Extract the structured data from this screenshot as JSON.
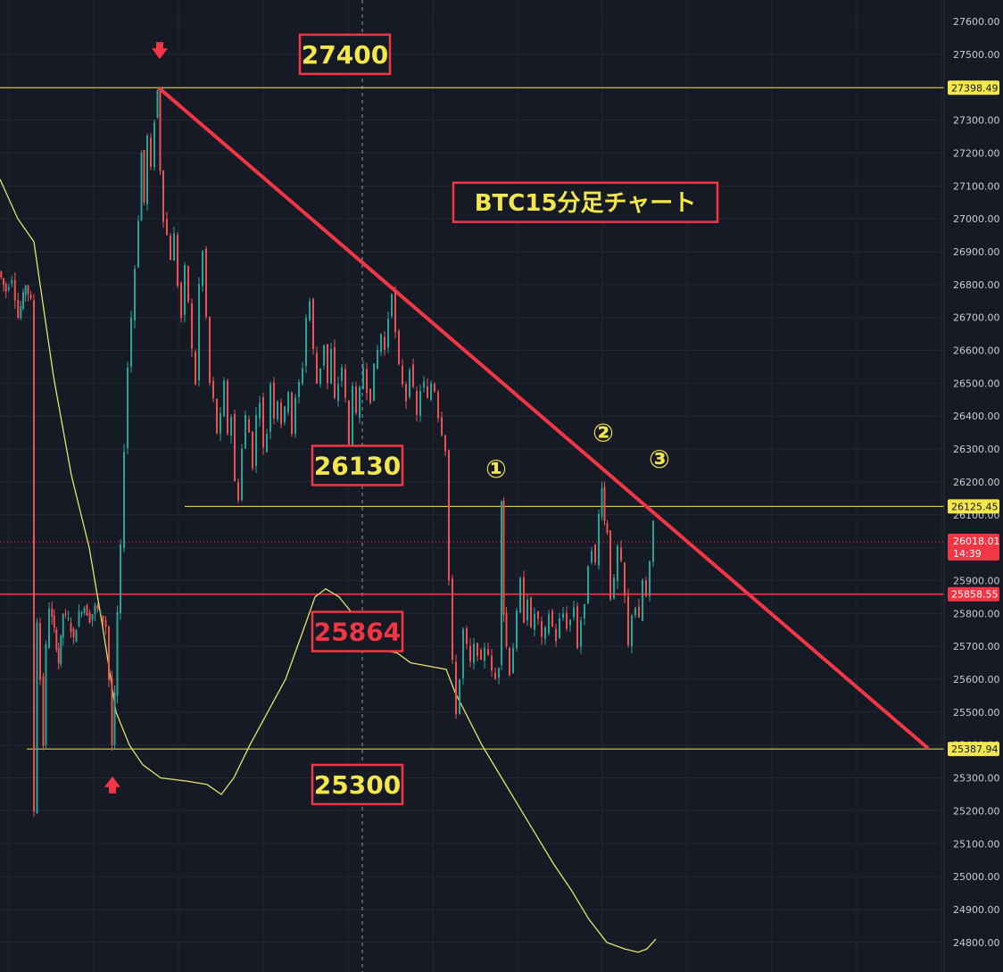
{
  "chart_data": {
    "type": "candlestick",
    "title": "BTC15分足チャート",
    "ylim": [
      24750,
      27700
    ],
    "y_ticks": [
      24800,
      24900,
      25000,
      25100,
      25200,
      25300,
      25400,
      25500,
      25600,
      25700,
      25800,
      25900,
      26000,
      26100,
      26200,
      26300,
      26400,
      26500,
      26600,
      26700,
      26800,
      26900,
      27000,
      27100,
      27200,
      27300,
      27400,
      27500,
      27600
    ],
    "grid": true,
    "colors": {
      "background": "#161a25",
      "up": "#26a69a",
      "down": "#ef5350",
      "accent_red": "#f23645",
      "accent_yellow": "#f3e74a",
      "ma": "#e3e36a"
    },
    "price_path": [
      [
        0,
        26840
      ],
      [
        8,
        26780
      ],
      [
        15,
        26820
      ],
      [
        22,
        26700
      ],
      [
        30,
        26800
      ],
      [
        36,
        26750
      ],
      [
        40,
        25200
      ],
      [
        43,
        25780
      ],
      [
        47,
        25600
      ],
      [
        50,
        25400
      ],
      [
        53,
        25700
      ],
      [
        57,
        25820
      ],
      [
        62,
        25750
      ],
      [
        67,
        25650
      ],
      [
        72,
        25800
      ],
      [
        78,
        25780
      ],
      [
        84,
        25720
      ],
      [
        90,
        25800
      ],
      [
        96,
        25820
      ],
      [
        102,
        25780
      ],
      [
        108,
        25820
      ],
      [
        114,
        25800
      ],
      [
        120,
        25760
      ],
      [
        124,
        25600
      ],
      [
        127,
        25400
      ],
      [
        130,
        25550
      ],
      [
        133,
        25800
      ],
      [
        137,
        26000
      ],
      [
        141,
        26300
      ],
      [
        145,
        26550
      ],
      [
        149,
        26700
      ],
      [
        153,
        26850
      ],
      [
        157,
        27000
      ],
      [
        160,
        27200
      ],
      [
        163,
        27050
      ],
      [
        167,
        27250
      ],
      [
        171,
        27150
      ],
      [
        175,
        27300
      ],
      [
        178,
        27390
      ],
      [
        181,
        27150
      ],
      [
        185,
        27000
      ],
      [
        189,
        26950
      ],
      [
        193,
        26880
      ],
      [
        197,
        26950
      ],
      [
        201,
        26800
      ],
      [
        205,
        26700
      ],
      [
        209,
        26850
      ],
      [
        213,
        26750
      ],
      [
        217,
        26600
      ],
      [
        221,
        26500
      ],
      [
        225,
        26800
      ],
      [
        229,
        26900
      ],
      [
        233,
        26700
      ],
      [
        237,
        26500
      ],
      [
        241,
        26450
      ],
      [
        245,
        26350
      ],
      [
        249,
        26400
      ],
      [
        253,
        26500
      ],
      [
        257,
        26350
      ],
      [
        261,
        26400
      ],
      [
        265,
        26200
      ],
      [
        269,
        26150
      ],
      [
        273,
        26300
      ],
      [
        277,
        26400
      ],
      [
        281,
        26350
      ],
      [
        285,
        26250
      ],
      [
        289,
        26400
      ],
      [
        293,
        26450
      ],
      [
        297,
        26300
      ],
      [
        301,
        26350
      ],
      [
        305,
        26500
      ],
      [
        309,
        26400
      ],
      [
        313,
        26450
      ],
      [
        317,
        26380
      ],
      [
        321,
        26420
      ],
      [
        325,
        26480
      ],
      [
        329,
        26350
      ],
      [
        333,
        26450
      ],
      [
        337,
        26500
      ],
      [
        341,
        26550
      ],
      [
        345,
        26700
      ],
      [
        349,
        26750
      ],
      [
        353,
        26600
      ],
      [
        357,
        26500
      ],
      [
        361,
        26550
      ],
      [
        365,
        26620
      ],
      [
        369,
        26500
      ],
      [
        373,
        26600
      ],
      [
        377,
        26450
      ],
      [
        381,
        26500
      ],
      [
        385,
        26550
      ],
      [
        389,
        26450
      ],
      [
        393,
        26300
      ],
      [
        397,
        26500
      ],
      [
        401,
        26400
      ],
      [
        405,
        26480
      ],
      [
        409,
        26550
      ],
      [
        413,
        26480
      ],
      [
        417,
        26450
      ],
      [
        421,
        26550
      ],
      [
        425,
        26600
      ],
      [
        429,
        26650
      ],
      [
        433,
        26600
      ],
      [
        437,
        26700
      ],
      [
        441,
        26780
      ],
      [
        445,
        26650
      ],
      [
        449,
        26550
      ],
      [
        453,
        26500
      ],
      [
        457,
        26450
      ],
      [
        461,
        26550
      ],
      [
        465,
        26480
      ],
      [
        469,
        26400
      ],
      [
        473,
        26480
      ],
      [
        477,
        26500
      ],
      [
        481,
        26450
      ],
      [
        485,
        26500
      ],
      [
        489,
        26480
      ],
      [
        493,
        26400
      ],
      [
        497,
        26350
      ],
      [
        501,
        26300
      ],
      [
        505,
        25900
      ],
      [
        509,
        25650
      ],
      [
        513,
        25500
      ],
      [
        517,
        25600
      ],
      [
        521,
        25750
      ],
      [
        525,
        25700
      ],
      [
        529,
        25650
      ],
      [
        533,
        25700
      ],
      [
        537,
        25680
      ],
      [
        541,
        25650
      ],
      [
        545,
        25700
      ],
      [
        549,
        25680
      ],
      [
        553,
        25620
      ],
      [
        557,
        25600
      ],
      [
        561,
        25640
      ],
      [
        563,
        26150
      ],
      [
        566,
        25800
      ],
      [
        569,
        25700
      ],
      [
        573,
        25620
      ],
      [
        577,
        25700
      ],
      [
        581,
        25800
      ],
      [
        585,
        25900
      ],
      [
        589,
        25780
      ],
      [
        593,
        25850
      ],
      [
        597,
        25750
      ],
      [
        601,
        25800
      ],
      [
        605,
        25780
      ],
      [
        609,
        25720
      ],
      [
        613,
        25750
      ],
      [
        617,
        25800
      ],
      [
        621,
        25760
      ],
      [
        625,
        25720
      ],
      [
        629,
        25780
      ],
      [
        633,
        25800
      ],
      [
        637,
        25760
      ],
      [
        641,
        25780
      ],
      [
        645,
        25820
      ],
      [
        649,
        25700
      ],
      [
        653,
        25780
      ],
      [
        657,
        25820
      ],
      [
        661,
        25950
      ],
      [
        665,
        26000
      ],
      [
        669,
        25950
      ],
      [
        673,
        26100
      ],
      [
        676,
        26190
      ],
      [
        679,
        26080
      ],
      [
        682,
        26050
      ],
      [
        686,
        25850
      ],
      [
        690,
        25900
      ],
      [
        694,
        26000
      ],
      [
        698,
        25950
      ],
      [
        702,
        25850
      ],
      [
        706,
        25700
      ],
      [
        710,
        25800
      ],
      [
        714,
        25820
      ],
      [
        718,
        25780
      ],
      [
        722,
        25900
      ],
      [
        726,
        25850
      ],
      [
        730,
        25950
      ],
      [
        734,
        26080
      ]
    ],
    "ma_path": [
      [
        0,
        27120
      ],
      [
        20,
        27000
      ],
      [
        38,
        26930
      ],
      [
        60,
        26520
      ],
      [
        80,
        26220
      ],
      [
        100,
        26000
      ],
      [
        115,
        25760
      ],
      [
        130,
        25500
      ],
      [
        145,
        25400
      ],
      [
        160,
        25340
      ],
      [
        180,
        25300
      ],
      [
        210,
        25290
      ],
      [
        232,
        25280
      ],
      [
        248,
        25250
      ],
      [
        262,
        25300
      ],
      [
        280,
        25400
      ],
      [
        300,
        25500
      ],
      [
        320,
        25600
      ],
      [
        340,
        25750
      ],
      [
        353,
        25850
      ],
      [
        365,
        25875
      ],
      [
        380,
        25850
      ],
      [
        395,
        25800
      ],
      [
        410,
        25720
      ],
      [
        425,
        25690
      ],
      [
        445,
        25680
      ],
      [
        460,
        25650
      ],
      [
        480,
        25640
      ],
      [
        500,
        25630
      ],
      [
        510,
        25560
      ],
      [
        525,
        25480
      ],
      [
        540,
        25400
      ],
      [
        560,
        25310
      ],
      [
        580,
        25220
      ],
      [
        600,
        25130
      ],
      [
        620,
        25040
      ],
      [
        640,
        24960
      ],
      [
        660,
        24870
      ],
      [
        680,
        24800
      ],
      [
        700,
        24780
      ],
      [
        715,
        24770
      ],
      [
        725,
        24780
      ],
      [
        735,
        24810
      ]
    ],
    "annotations": {
      "trendline": {
        "start": {
          "x": 178,
          "price": 27398
        },
        "end": {
          "x": 1040,
          "price": 25390
        }
      },
      "levels": [
        {
          "price": 27398.49,
          "label": "27398.49",
          "color": "#f3e74a",
          "x_start": 0
        },
        {
          "price": 26125.45,
          "label": "26125.45",
          "color": "#f3e74a",
          "x_start": 207
        },
        {
          "price": 25858.55,
          "label": "25858.55",
          "color": "#f23645",
          "x_start": 0
        },
        {
          "price": 25387.94,
          "label": "25387.94",
          "color": "#f3e74a",
          "x_start": 30
        }
      ],
      "current_price": {
        "price": 26018.01,
        "label": "26018.01",
        "timer": "14:39"
      },
      "boxes": [
        {
          "text": "27400",
          "color": "#f3e74a",
          "x": 336,
          "price": 27500
        },
        {
          "text": "BTC15分足チャート",
          "color": "#f3e74a",
          "x": 508,
          "price": 27050
        },
        {
          "text": "26130",
          "color": "#f3e74a",
          "x": 350,
          "price": 26250
        },
        {
          "text": "25864",
          "color": "#f23645",
          "x": 350,
          "price": 25745
        },
        {
          "text": "25300",
          "color": "#f3e74a",
          "x": 350,
          "price": 25280
        }
      ],
      "circled": [
        {
          "text": "①",
          "x": 556,
          "price": 26240
        },
        {
          "text": "②",
          "x": 676,
          "price": 26350
        },
        {
          "text": "③",
          "x": 739,
          "price": 26270
        }
      ],
      "arrows": [
        {
          "dir": "down",
          "x": 179,
          "price": 27510
        },
        {
          "dir": "up",
          "x": 126,
          "price": 25280
        }
      ]
    }
  }
}
